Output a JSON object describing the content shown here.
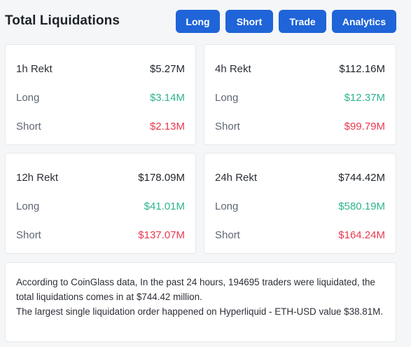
{
  "header": {
    "title": "Total Liquidations",
    "buttons": {
      "long": "Long",
      "short": "Short",
      "trade": "Trade",
      "analytics": "Analytics"
    }
  },
  "cards": {
    "h1": {
      "title": "1h Rekt",
      "total": "$5.27M",
      "long_label": "Long",
      "long": "$3.14M",
      "short_label": "Short",
      "short": "$2.13M"
    },
    "h4": {
      "title": "4h Rekt",
      "total": "$112.16M",
      "long_label": "Long",
      "long": "$12.37M",
      "short_label": "Short",
      "short": "$99.79M"
    },
    "h12": {
      "title": "12h Rekt",
      "total": "$178.09M",
      "long_label": "Long",
      "long": "$41.01M",
      "short_label": "Short",
      "short": "$137.07M"
    },
    "h24": {
      "title": "24h Rekt",
      "total": "$744.42M",
      "long_label": "Long",
      "long": "$580.19M",
      "short_label": "Short",
      "short": "$164.24M"
    }
  },
  "note": {
    "line1": "According to CoinGlass data, In the past 24 hours, 194695 traders were liquidated, the total liquidations comes in at $744.42 million.",
    "line2": "The largest single liquidation order happened on Hyperliquid - ETH-USD value $38.81M."
  },
  "colors": {
    "button": "#1f64d8",
    "green": "#2eb38f",
    "red": "#e8394f"
  }
}
